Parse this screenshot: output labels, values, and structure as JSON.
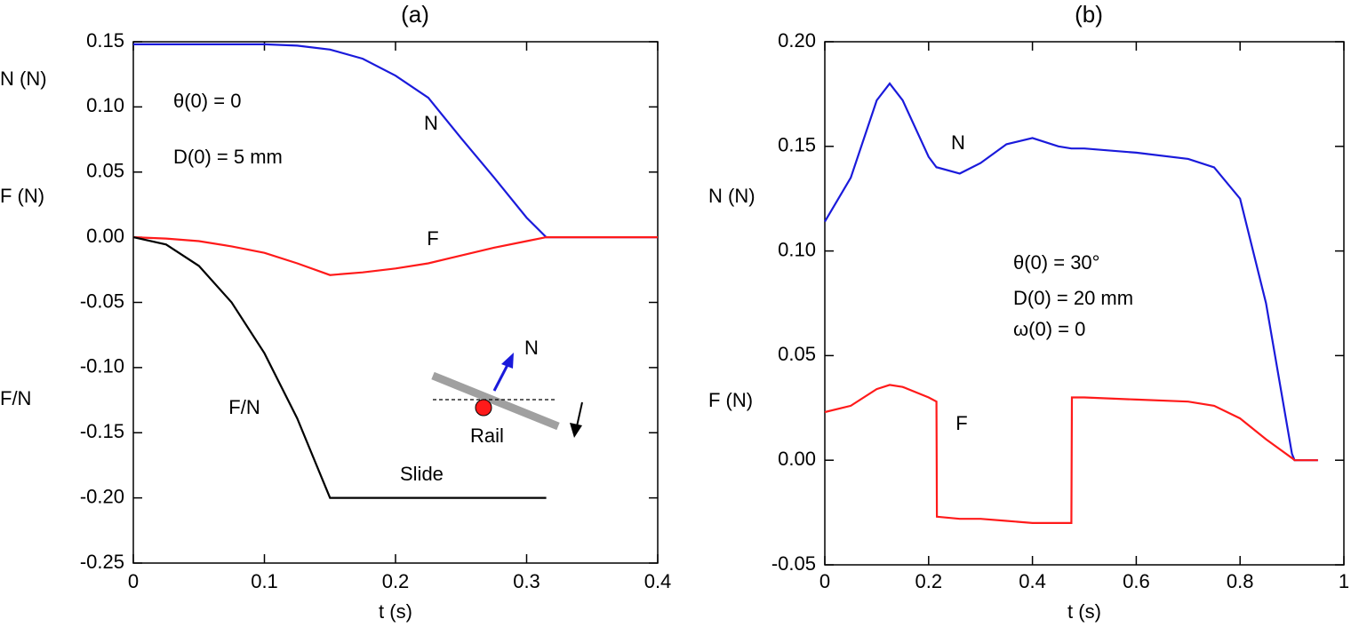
{
  "chart_data": [
    {
      "type": "line",
      "title": "(a)",
      "xlabel": "t (s)",
      "y_labels": [
        "N (N)",
        "F (N)",
        "F/N"
      ],
      "annotations": [
        "θ(0) = 0",
        "D(0) = 5 mm",
        "Slide",
        "Rail",
        "N"
      ],
      "x": [
        0,
        0.025,
        0.05,
        0.075,
        0.1,
        0.125,
        0.15,
        0.175,
        0.2,
        0.225,
        0.25,
        0.275,
        0.3,
        0.315,
        0.35,
        0.4
      ],
      "series": [
        {
          "name": "N",
          "color": "#1a1adb",
          "values": [
            0.148,
            0.148,
            0.148,
            0.148,
            0.148,
            0.147,
            0.144,
            0.137,
            0.124,
            0.107,
            0.076,
            0.046,
            0.015,
            0,
            0,
            0
          ]
        },
        {
          "name": "F",
          "color": "#ff1a1a",
          "values": [
            0,
            -0.001,
            -0.003,
            -0.007,
            -0.012,
            -0.02,
            -0.029,
            -0.027,
            -0.024,
            -0.02,
            -0.014,
            -0.008,
            -0.003,
            0,
            0,
            0
          ]
        },
        {
          "name": "F/N",
          "color": "#000000",
          "values": [
            0,
            -0.0056,
            -0.022,
            -0.05,
            -0.089,
            -0.139,
            -0.2,
            -0.2,
            -0.2,
            -0.2,
            -0.2,
            -0.2,
            -0.2,
            -0.2,
            null,
            null
          ]
        }
      ],
      "xlim": [
        0,
        0.4
      ],
      "xticks": [
        0,
        0.1,
        0.2,
        0.3,
        0.4
      ],
      "ylim": [
        -0.25,
        0.15
      ],
      "yticks": [
        -0.25,
        {
          "value": -0.2,
          "label": "-0.20"
        },
        -0.15,
        {
          "value": -0.1,
          "label": "-0.10"
        },
        -0.05,
        {
          "value": 0,
          "label": "0.00"
        },
        0.05,
        {
          "value": 0.1,
          "label": "0.10"
        },
        0.15
      ]
    },
    {
      "type": "line",
      "title": "(b)",
      "xlabel": "t (s)",
      "y_labels": [
        "N (N)",
        "F (N)"
      ],
      "annotations": [
        "θ(0) = 30°",
        "D(0) = 20 mm",
        "ω(0) = 0"
      ],
      "x": [
        0,
        0.05,
        0.1,
        0.125,
        0.15,
        0.2,
        0.215,
        0.216,
        0.26,
        0.3,
        0.35,
        0.4,
        0.45,
        0.475,
        0.476,
        0.5,
        0.6,
        0.7,
        0.75,
        0.8,
        0.85,
        0.9,
        0.905,
        0.95
      ],
      "series": [
        {
          "name": "N",
          "color": "#1a1adb",
          "values": [
            0.114,
            0.135,
            0.172,
            0.18,
            0.172,
            0.145,
            0.14,
            0.14,
            0.137,
            0.142,
            0.151,
            0.154,
            0.15,
            0.149,
            0.149,
            0.149,
            0.147,
            0.144,
            0.14,
            0.125,
            0.075,
            0.003,
            0,
            0
          ]
        },
        {
          "name": "F",
          "color": "#ff1a1a",
          "values": [
            0.023,
            0.026,
            0.034,
            0.036,
            0.035,
            0.03,
            0.028,
            -0.027,
            -0.028,
            -0.028,
            -0.029,
            -0.03,
            -0.03,
            -0.03,
            0.03,
            0.03,
            0.029,
            0.028,
            0.026,
            0.02,
            0.01,
            0.001,
            0,
            0
          ]
        }
      ],
      "xlim": [
        0,
        1
      ],
      "xticks": [
        0,
        0.2,
        0.4,
        0.6,
        0.8,
        1
      ],
      "ylim": [
        -0.05,
        0.2
      ],
      "yticks": [
        -0.05,
        {
          "value": 0,
          "label": "0.00"
        },
        0.05,
        {
          "value": 0.1,
          "label": "0.10"
        },
        0.15,
        {
          "value": 0.2,
          "label": "0.20"
        }
      ]
    }
  ]
}
